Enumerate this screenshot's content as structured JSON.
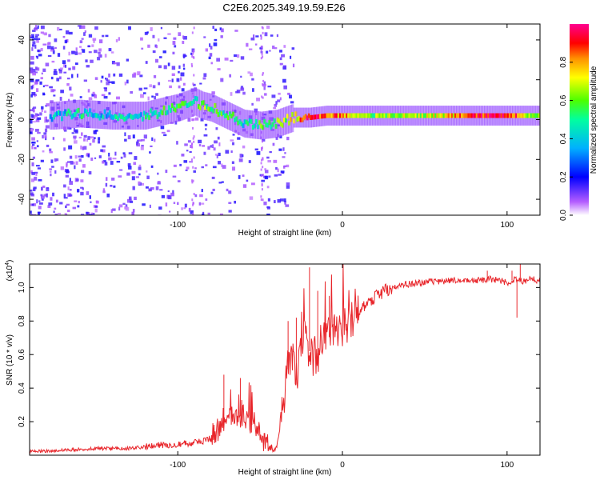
{
  "title": "C2E6.2025.349.19.59.E26",
  "colorbar": {
    "label": "Normalized spectral amplitude",
    "ticks": [
      "0.0",
      "0.2",
      "0.4",
      "0.6",
      "0.8"
    ],
    "tick_values": [
      0,
      0.2,
      0.4,
      0.6,
      0.8
    ],
    "range": [
      0,
      1
    ]
  },
  "chart_data": [
    {
      "type": "heatmap",
      "title": "C2E6.2025.349.19.59.E26",
      "xlabel": "Height of straight line (km)",
      "ylabel": "Frequency (Hz)",
      "xlim": [
        -190,
        120
      ],
      "ylim": [
        -48,
        48
      ],
      "xticks": [
        -100,
        0,
        100
      ],
      "xtick_labels": [
        "-100",
        "0",
        "100"
      ],
      "yticks": [
        -40,
        -20,
        0,
        20,
        40
      ],
      "ytick_labels": [
        "-40",
        "-20",
        "0",
        "20",
        "40"
      ],
      "ridge": {
        "description": "dominant frequency ridge (Hz) vs height (km)",
        "x": [
          -175,
          -160,
          -140,
          -120,
          -110,
          -100,
          -90,
          -85,
          -80,
          -70,
          -60,
          -50,
          -40,
          -30,
          -20,
          -10,
          0,
          20,
          60,
          80,
          100,
          120
        ],
        "y": [
          2,
          3,
          2,
          2,
          4,
          6,
          9,
          7,
          6,
          2,
          -2,
          -3,
          -2,
          1,
          1,
          2,
          2,
          2,
          2,
          2,
          2,
          2
        ],
        "amplitude": [
          0.4,
          0.45,
          0.4,
          0.45,
          0.5,
          0.55,
          0.5,
          0.6,
          0.55,
          0.5,
          0.45,
          0.55,
          0.6,
          0.7,
          0.95,
          0.85,
          0.8,
          0.6,
          0.7,
          0.9,
          0.95,
          0.55
        ]
      }
    },
    {
      "type": "line",
      "title": "",
      "xlabel": "Height of straight line (km)",
      "ylabel": "SNR (10 * v/v)",
      "scale_label": "(x10",
      "scale_exp": "4",
      "scale_close": ")",
      "xlim": [
        -190,
        120
      ],
      "ylim": [
        0,
        1.14
      ],
      "xticks": [
        -100,
        0,
        100
      ],
      "xtick_labels": [
        "-100",
        "0",
        "100"
      ],
      "yticks": [
        0.2,
        0.4,
        0.6,
        0.8,
        1.0
      ],
      "ytick_labels": [
        "0.2",
        "0.4",
        "0.6",
        "0.8",
        "1.0"
      ],
      "series": [
        {
          "name": "SNR",
          "color": "#e8262b",
          "x": [
            -190,
            -170,
            -150,
            -130,
            -120,
            -110,
            -95,
            -85,
            -80,
            -75,
            -70,
            -65,
            -60,
            -55,
            -50,
            -45,
            -42,
            -40,
            -38,
            -35,
            -32,
            -30,
            -28,
            -25,
            -22,
            -20,
            -18,
            -15,
            -12,
            -10,
            -5,
            0,
            5,
            10,
            15,
            20,
            25,
            30,
            40,
            50,
            60,
            70,
            80,
            90,
            100,
            105,
            110,
            115,
            120
          ],
          "y": [
            0.02,
            0.03,
            0.04,
            0.04,
            0.05,
            0.06,
            0.07,
            0.08,
            0.1,
            0.16,
            0.25,
            0.22,
            0.24,
            0.18,
            0.12,
            0.05,
            0.03,
            0.05,
            0.15,
            0.38,
            0.58,
            0.55,
            0.45,
            0.65,
            0.7,
            0.62,
            0.58,
            0.6,
            0.72,
            0.68,
            0.74,
            0.76,
            0.78,
            0.86,
            0.9,
            0.94,
            0.98,
            1.0,
            1.02,
            1.03,
            1.04,
            1.04,
            1.04,
            1.05,
            1.03,
            1.05,
            1.04,
            1.05,
            1.04
          ],
          "spikes": [
            {
              "x": -72,
              "y": 0.48
            },
            {
              "x": -62,
              "y": 0.46
            },
            {
              "x": -55,
              "y": 0.35
            },
            {
              "x": -33,
              "y": 0.8
            },
            {
              "x": -28,
              "y": 0.82
            },
            {
              "x": -20,
              "y": 1.12
            },
            {
              "x": -15,
              "y": 0.98
            },
            {
              "x": -8,
              "y": 0.95
            },
            {
              "x": 88,
              "y": 1.1
            },
            {
              "x": 103,
              "y": 1.1
            },
            {
              "x": 106,
              "y": 0.82
            },
            {
              "x": 108,
              "y": 1.14
            }
          ]
        }
      ]
    }
  ]
}
